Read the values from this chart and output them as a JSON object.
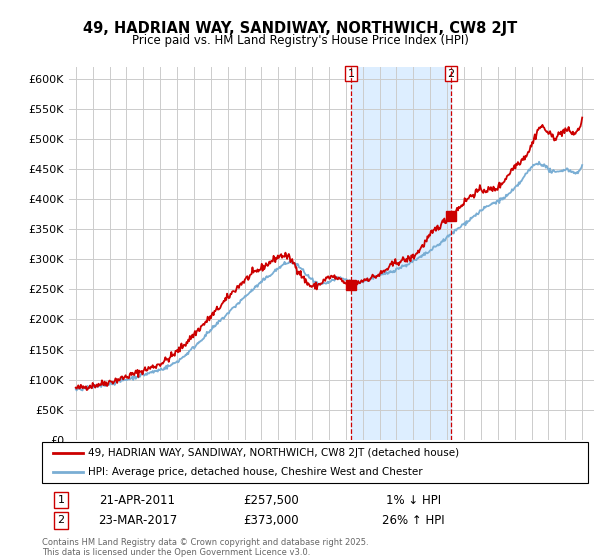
{
  "title": "49, HADRIAN WAY, SANDIWAY, NORTHWICH, CW8 2JT",
  "subtitle": "Price paid vs. HM Land Registry's House Price Index (HPI)",
  "legend_label_red": "49, HADRIAN WAY, SANDIWAY, NORTHWICH, CW8 2JT (detached house)",
  "legend_label_blue": "HPI: Average price, detached house, Cheshire West and Chester",
  "footnote": "Contains HM Land Registry data © Crown copyright and database right 2025.\nThis data is licensed under the Open Government Licence v3.0.",
  "sale1_label": "1",
  "sale1_date": "21-APR-2011",
  "sale1_price": "£257,500",
  "sale1_hpi": "1% ↓ HPI",
  "sale2_label": "2",
  "sale2_date": "23-MAR-2017",
  "sale2_price": "£373,000",
  "sale2_hpi": "26% ↑ HPI",
  "ylim": [
    0,
    620000
  ],
  "yticks": [
    0,
    50000,
    100000,
    150000,
    200000,
    250000,
    300000,
    350000,
    400000,
    450000,
    500000,
    550000,
    600000
  ],
  "red_color": "#cc0000",
  "blue_color": "#7aaed4",
  "shade_color": "#ddeeff",
  "vline_color": "#cc0000",
  "marker1_x": 2011.31,
  "marker2_x": 2017.23,
  "marker1_y": 257500,
  "marker2_y": 373000,
  "background_color": "#ffffff",
  "grid_color": "#cccccc",
  "xlim_left": 1994.6,
  "xlim_right": 2025.7
}
